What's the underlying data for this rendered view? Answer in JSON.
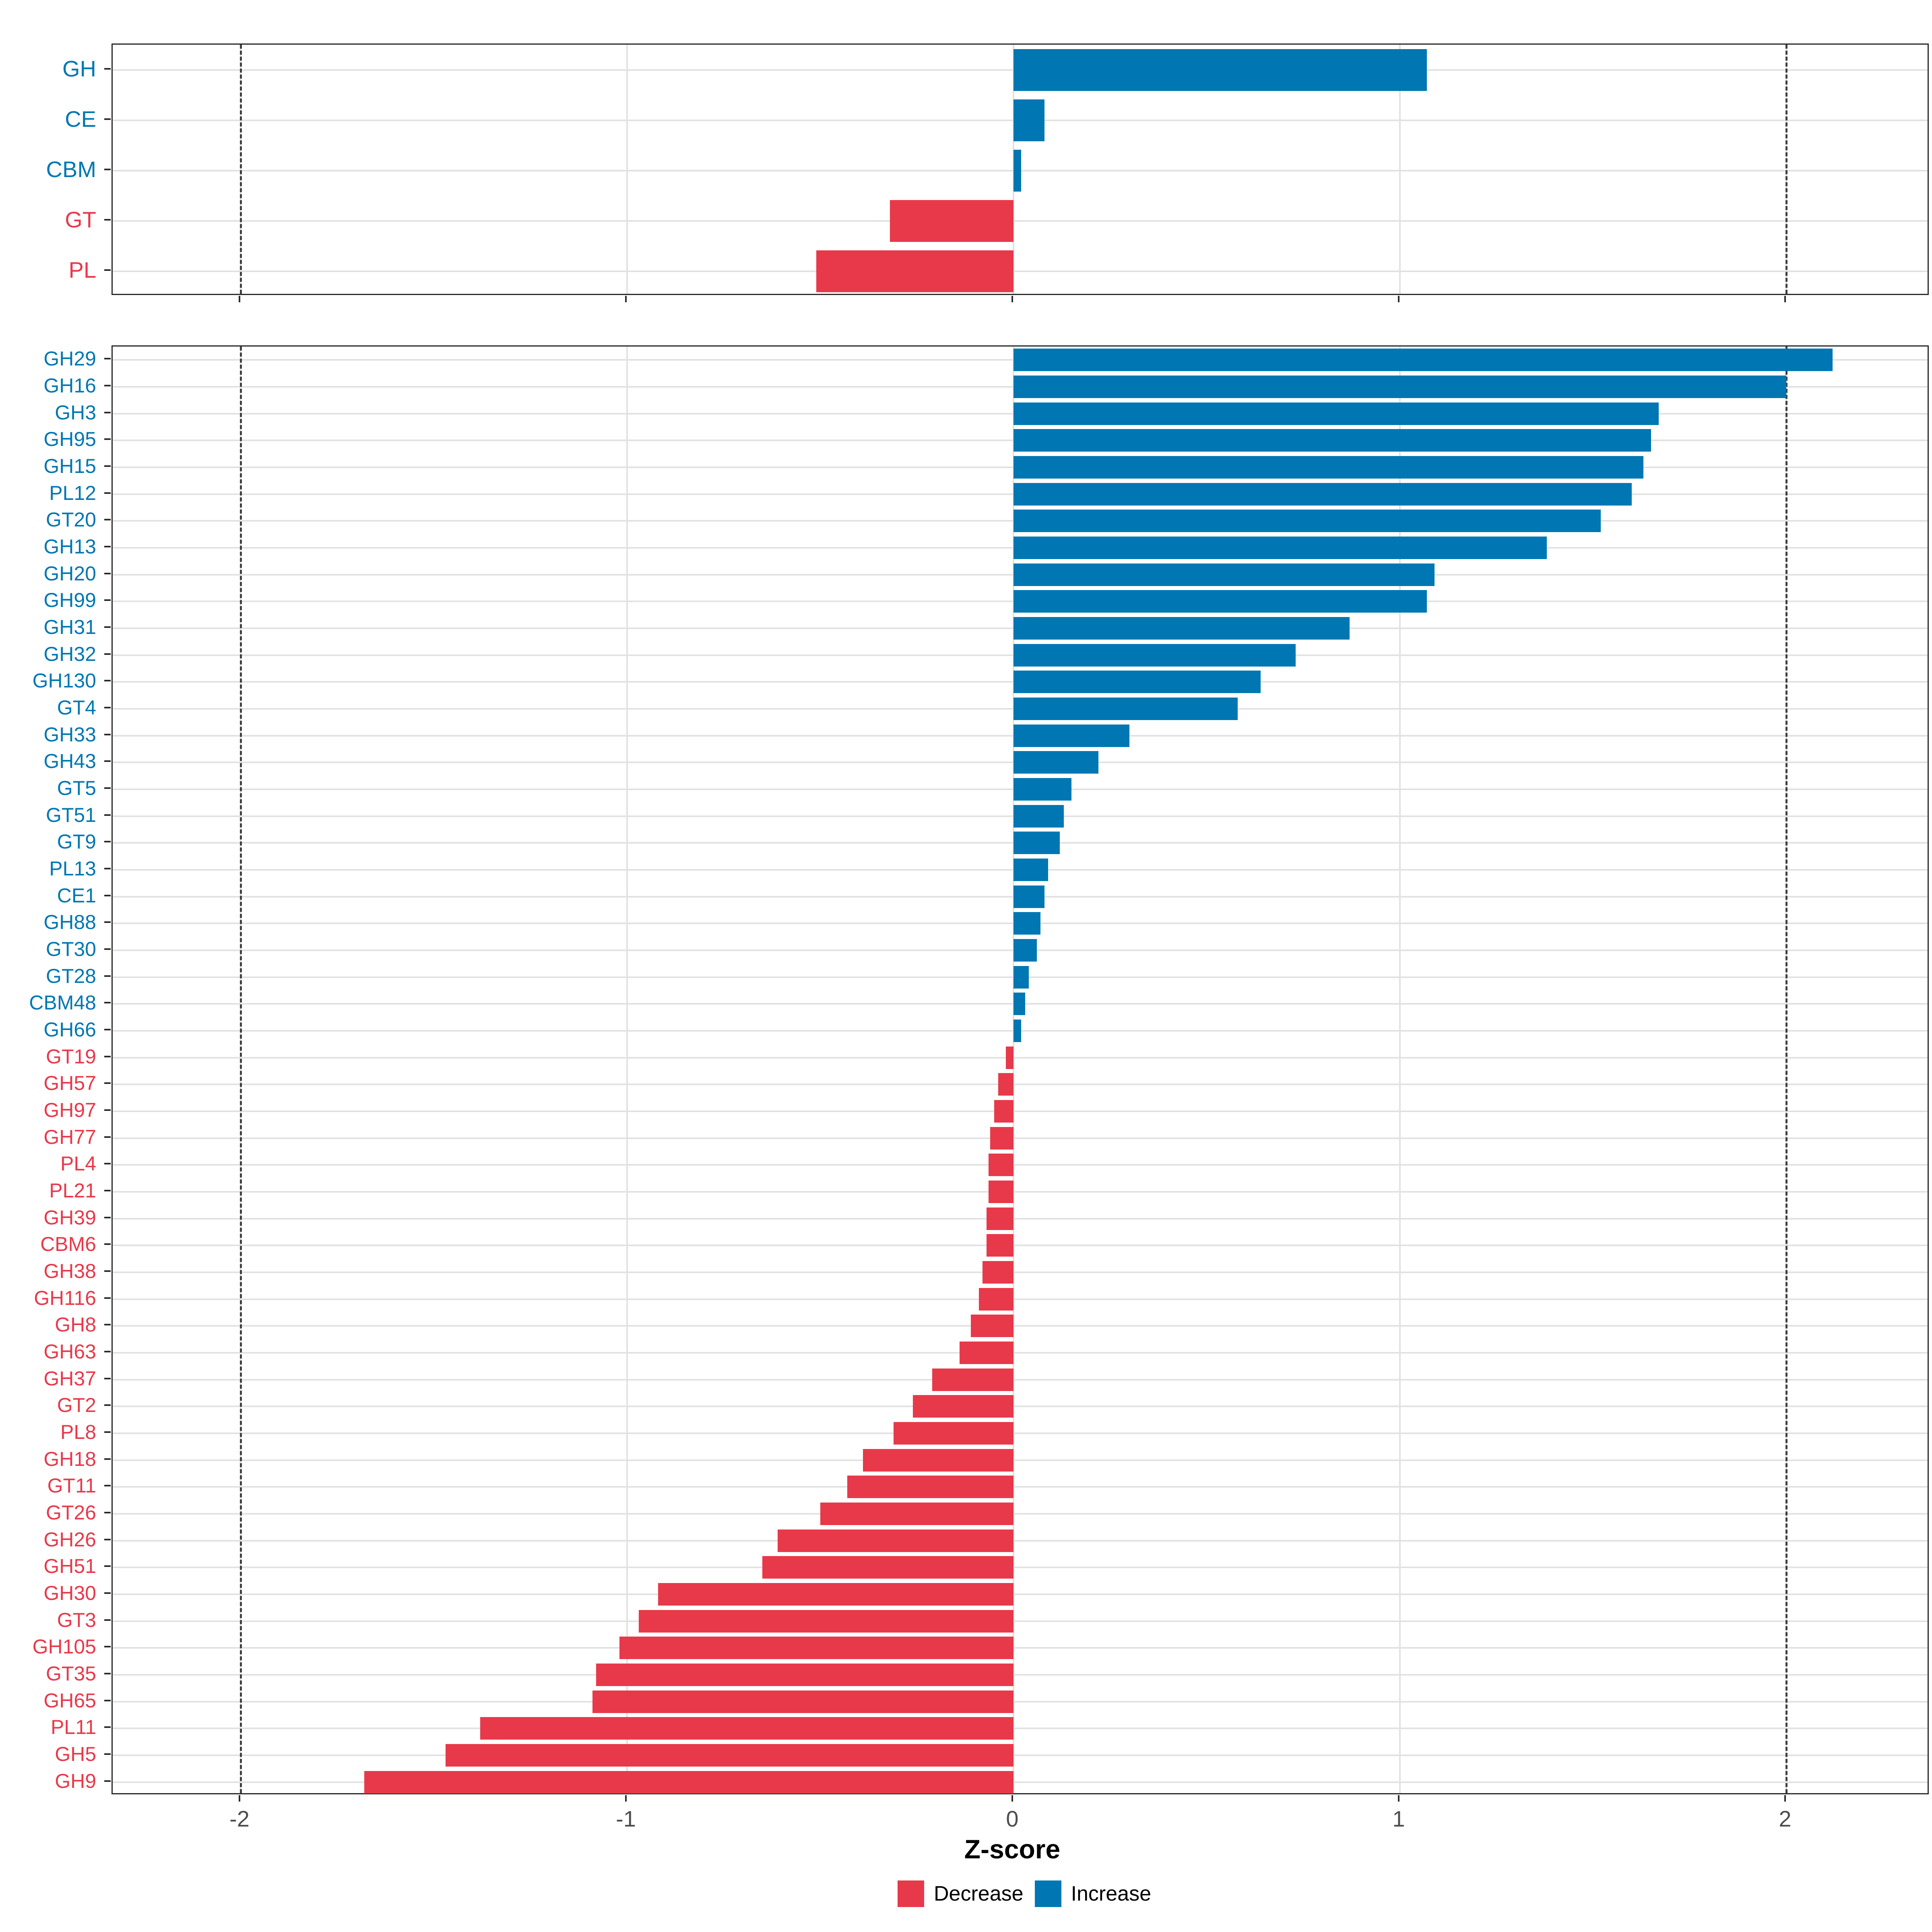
{
  "chart_data": {
    "type": "bar",
    "orientation": "horizontal",
    "title": "",
    "xlabel": "Z-score",
    "x_ticks": [
      -2,
      -1,
      0,
      1,
      2
    ],
    "x_tick_labels": [
      "-2",
      "-1",
      "0",
      "1",
      "2"
    ],
    "xlim": [
      -2.33,
      2.37
    ],
    "dashed_reference_lines": [
      -2,
      2
    ],
    "grid": "on",
    "legend_position": "bottom",
    "colors": {
      "increase": "#0077B2",
      "decrease": "#E8394A"
    },
    "legend": [
      {
        "label": "Decrease",
        "color": "#E8394A"
      },
      {
        "label": "Increase",
        "color": "#0077B2"
      }
    ],
    "panels": [
      {
        "name": "family-summary",
        "categories": [
          "GH",
          "CE",
          "CBM",
          "GT",
          "PL"
        ],
        "values": [
          1.07,
          0.08,
          0.02,
          -0.32,
          -0.51
        ]
      },
      {
        "name": "subfamily-detail",
        "categories": [
          "GH29",
          "GH16",
          "GH3",
          "GH95",
          "GH15",
          "PL12",
          "GT20",
          "GH13",
          "GH20",
          "GH99",
          "GH31",
          "GH32",
          "GH130",
          "GT4",
          "GH33",
          "GH43",
          "GT5",
          "GT51",
          "GT9",
          "PL13",
          "CE1",
          "GH88",
          "GT30",
          "GT28",
          "CBM48",
          "GH66",
          "GT19",
          "GH57",
          "GH97",
          "GH77",
          "PL4",
          "PL21",
          "GH39",
          "CBM6",
          "GH38",
          "GH116",
          "GH8",
          "GH63",
          "GH37",
          "GT2",
          "PL8",
          "GH18",
          "GT11",
          "GT26",
          "GH26",
          "GH51",
          "GH30",
          "GT3",
          "GH105",
          "GT35",
          "GH65",
          "PL11",
          "GH5",
          "GH9"
        ],
        "values": [
          2.12,
          2.0,
          1.67,
          1.65,
          1.63,
          1.6,
          1.52,
          1.38,
          1.09,
          1.07,
          0.87,
          0.73,
          0.64,
          0.58,
          0.3,
          0.22,
          0.15,
          0.13,
          0.12,
          0.09,
          0.08,
          0.07,
          0.06,
          0.04,
          0.03,
          0.02,
          -0.02,
          -0.04,
          -0.05,
          -0.06,
          -0.065,
          -0.065,
          -0.07,
          -0.07,
          -0.08,
          -0.09,
          -0.11,
          -0.14,
          -0.21,
          -0.26,
          -0.31,
          -0.39,
          -0.43,
          -0.5,
          -0.61,
          -0.65,
          -0.92,
          -0.97,
          -1.02,
          -1.08,
          -1.09,
          -1.38,
          -1.47,
          -1.68
        ]
      }
    ]
  }
}
